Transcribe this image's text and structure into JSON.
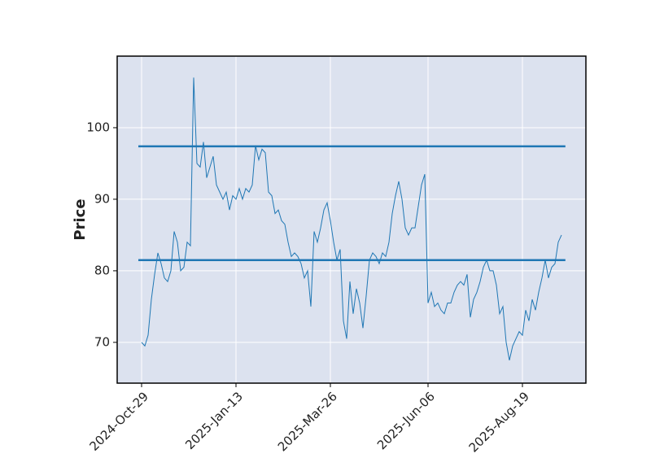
{
  "chart_data": {
    "type": "line",
    "ylabel": "Price",
    "categories": [
      "2024-Oct-29",
      null,
      null,
      null,
      null,
      null,
      null,
      null,
      null,
      null,
      null,
      null,
      null,
      null,
      null,
      null,
      null,
      null,
      null,
      null,
      null,
      null,
      null,
      null,
      null,
      null,
      null,
      null,
      null,
      "2025-Jan-13",
      null,
      null,
      null,
      null,
      null,
      null,
      null,
      null,
      null,
      null,
      null,
      null,
      null,
      null,
      null,
      null,
      null,
      null,
      null,
      null,
      null,
      null,
      null,
      null,
      null,
      null,
      null,
      null,
      "2025-Mar-26",
      null,
      null,
      null,
      null,
      null,
      null,
      null,
      null,
      null,
      null,
      null,
      null,
      null,
      null,
      null,
      null,
      null,
      null,
      null,
      null,
      null,
      null,
      null,
      null,
      null,
      null,
      null,
      null,
      null,
      "2025-Jun-06",
      null,
      null,
      null,
      null,
      null,
      null,
      null,
      null,
      null,
      null,
      null,
      null,
      null,
      null,
      null,
      null,
      null,
      null,
      null,
      null,
      null,
      null,
      null,
      null,
      null,
      null,
      null,
      null,
      "2025-Aug-19",
      null,
      null,
      null,
      null,
      null,
      null,
      null,
      null,
      null,
      null,
      null,
      null
    ],
    "series": [
      {
        "color": "#1f77b4",
        "values": [
          70,
          69.5,
          71,
          76,
          79.5,
          82.5,
          81,
          79,
          78.5,
          80,
          85.5,
          84,
          80,
          80.5,
          84,
          83.5,
          107,
          95,
          94.5,
          98,
          93,
          94.5,
          96,
          92,
          91,
          90,
          91,
          88.5,
          90.5,
          90,
          91.5,
          90,
          91.5,
          91,
          92,
          97.5,
          95.5,
          97,
          96.5,
          91,
          90.5,
          88,
          88.5,
          87,
          86.5,
          84,
          82,
          82.5,
          82,
          81,
          79,
          80,
          75,
          85.5,
          84,
          86,
          88.5,
          89.5,
          87,
          84,
          81.5,
          83,
          73,
          70.5,
          78.5,
          74,
          77.5,
          75.5,
          72,
          76.5,
          81.5,
          82.5,
          82,
          81,
          82.5,
          82,
          84,
          88,
          90.5,
          92.5,
          90,
          86,
          85,
          86,
          86,
          89,
          92,
          93.5,
          75.5,
          77,
          75,
          75.5,
          74.5,
          74,
          75.5,
          75.5,
          77,
          78,
          78.5,
          78,
          79.5,
          73.5,
          76,
          77,
          78.5,
          80.5,
          81.5,
          80,
          80,
          78,
          74,
          75,
          70,
          67.5,
          69.5,
          70.5,
          71.5,
          71,
          74.5,
          73,
          76,
          74.5,
          77,
          79,
          81.5,
          79,
          80.5,
          81,
          84,
          85
        ]
      }
    ],
    "hlines": [
      {
        "value": 97.4,
        "color": "#1f77b4"
      },
      {
        "value": 81.5,
        "color": "#1f77b4"
      }
    ],
    "ylim": [
      64.3,
      110
    ],
    "yticks": [
      70,
      80,
      90,
      100
    ],
    "grid": true
  }
}
